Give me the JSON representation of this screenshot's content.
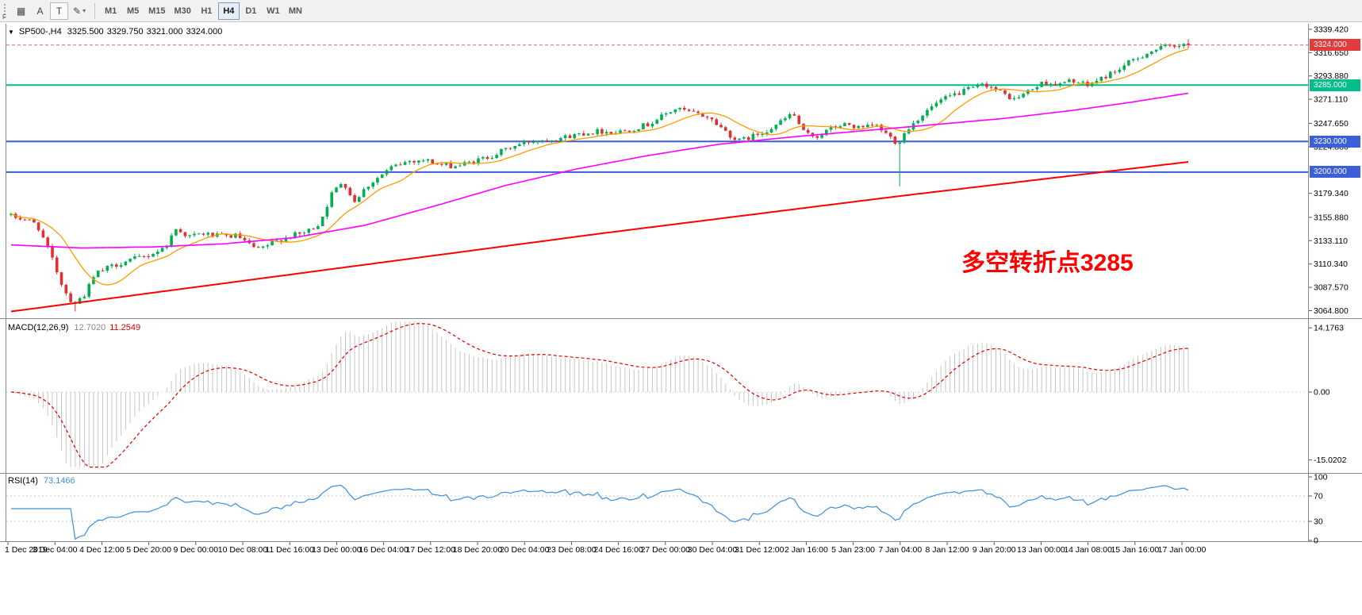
{
  "toolbar": {
    "dock_label": "F",
    "tools": [
      {
        "name": "grid-tool",
        "glyph": "▦"
      },
      {
        "name": "text-tool",
        "glyph": "A"
      },
      {
        "name": "type-tool",
        "glyph": "T"
      },
      {
        "name": "draw-tools",
        "glyph": "✎",
        "caret": "▾"
      }
    ],
    "timeframes": [
      "M1",
      "M5",
      "M15",
      "M30",
      "H1",
      "H4",
      "D1",
      "W1",
      "MN"
    ],
    "active_timeframe": "H4"
  },
  "chart_data": {
    "type": "candlestick",
    "title": "SP500-,H4",
    "symbol": "SP500-",
    "period": "H4",
    "selector_glyph": "▼",
    "quote": {
      "open": "3325.500",
      "high": "3329.750",
      "low": "3321.000",
      "close": "3324.000"
    },
    "price_axis_labels": [
      "3339.420",
      "3316.650",
      "3293.880",
      "3271.110",
      "3247.650",
      "3224.880",
      "3179.340",
      "3155.880",
      "3133.110",
      "3110.340",
      "3087.570",
      "3064.800"
    ],
    "current_price": {
      "label": "3324.000",
      "color": "#e23b3b"
    },
    "hlines": [
      {
        "label": "3285.000",
        "color": "#00bd8a"
      },
      {
        "label": "3230.000",
        "color": "#3a5fd9"
      },
      {
        "label": "3200.000",
        "color": "#3a5fd9"
      }
    ],
    "annotation": {
      "text": "多空转折点3285",
      "color": "#ff0000"
    },
    "candles": {
      "count": 258,
      "up_color": "#00b050",
      "down_color": "#e03030",
      "close_path": [
        [
          0.0,
          3157
        ],
        [
          0.012,
          3154
        ],
        [
          0.022,
          3149
        ],
        [
          0.034,
          3118
        ],
        [
          0.045,
          3085
        ],
        [
          0.053,
          3071
        ],
        [
          0.062,
          3080
        ],
        [
          0.072,
          3101
        ],
        [
          0.085,
          3108
        ],
        [
          0.1,
          3114
        ],
        [
          0.115,
          3118
        ],
        [
          0.13,
          3126
        ],
        [
          0.141,
          3146
        ],
        [
          0.15,
          3137
        ],
        [
          0.163,
          3140
        ],
        [
          0.178,
          3137
        ],
        [
          0.192,
          3138
        ],
        [
          0.202,
          3129
        ],
        [
          0.21,
          3124
        ],
        [
          0.222,
          3131
        ],
        [
          0.235,
          3137
        ],
        [
          0.25,
          3141
        ],
        [
          0.262,
          3150
        ],
        [
          0.272,
          3178
        ],
        [
          0.282,
          3192
        ],
        [
          0.291,
          3171
        ],
        [
          0.302,
          3186
        ],
        [
          0.312,
          3195
        ],
        [
          0.324,
          3205
        ],
        [
          0.338,
          3211
        ],
        [
          0.352,
          3212
        ],
        [
          0.364,
          3207
        ],
        [
          0.378,
          3206
        ],
        [
          0.392,
          3210
        ],
        [
          0.408,
          3216
        ],
        [
          0.424,
          3224
        ],
        [
          0.44,
          3230
        ],
        [
          0.455,
          3232
        ],
        [
          0.47,
          3234
        ],
        [
          0.485,
          3238
        ],
        [
          0.5,
          3240
        ],
        [
          0.513,
          3239
        ],
        [
          0.527,
          3242
        ],
        [
          0.542,
          3247
        ],
        [
          0.555,
          3256
        ],
        [
          0.565,
          3262
        ],
        [
          0.578,
          3258
        ],
        [
          0.592,
          3254
        ],
        [
          0.606,
          3241
        ],
        [
          0.617,
          3230
        ],
        [
          0.628,
          3234
        ],
        [
          0.642,
          3241
        ],
        [
          0.654,
          3249
        ],
        [
          0.664,
          3258
        ],
        [
          0.674,
          3237
        ],
        [
          0.685,
          3235
        ],
        [
          0.697,
          3243
        ],
        [
          0.71,
          3247
        ],
        [
          0.722,
          3242
        ],
        [
          0.734,
          3246
        ],
        [
          0.744,
          3237
        ],
        [
          0.753,
          3228
        ],
        [
          0.762,
          3243
        ],
        [
          0.774,
          3256
        ],
        [
          0.787,
          3268
        ],
        [
          0.802,
          3276
        ],
        [
          0.817,
          3282
        ],
        [
          0.828,
          3286
        ],
        [
          0.84,
          3278
        ],
        [
          0.852,
          3271
        ],
        [
          0.866,
          3280
        ],
        [
          0.878,
          3288
        ],
        [
          0.89,
          3285
        ],
        [
          0.902,
          3290
        ],
        [
          0.914,
          3284
        ],
        [
          0.927,
          3292
        ],
        [
          0.94,
          3300
        ],
        [
          0.953,
          3309
        ],
        [
          0.966,
          3317
        ],
        [
          0.982,
          3323
        ],
        [
          1.0,
          3326
        ]
      ],
      "low_spikes": [
        {
          "frac": 0.053,
          "low": 3064
        },
        {
          "frac": 0.753,
          "low": 3186
        }
      ]
    },
    "moving_averages": {
      "fast": {
        "period": 12,
        "color": "#ff9c00"
      },
      "medium": {
        "color": "#ff00ff",
        "path": [
          [
            0,
            3129
          ],
          [
            0.06,
            3126
          ],
          [
            0.12,
            3127
          ],
          [
            0.18,
            3130
          ],
          [
            0.24,
            3136
          ],
          [
            0.3,
            3148
          ],
          [
            0.36,
            3167
          ],
          [
            0.42,
            3187
          ],
          [
            0.48,
            3203
          ],
          [
            0.54,
            3216
          ],
          [
            0.6,
            3227
          ],
          [
            0.66,
            3234
          ],
          [
            0.72,
            3240
          ],
          [
            0.78,
            3246
          ],
          [
            0.84,
            3252
          ],
          [
            0.9,
            3260
          ],
          [
            0.95,
            3268
          ],
          [
            1,
            3277
          ]
        ]
      },
      "slow": {
        "color": "#ff0000",
        "path": [
          [
            0,
            3064
          ],
          [
            0.25,
            3102
          ],
          [
            0.5,
            3140
          ],
          [
            0.75,
            3176
          ],
          [
            1,
            3210
          ]
        ]
      }
    },
    "macd": {
      "name": "MACD(12,26,9)",
      "main_value": "12.7020",
      "signal_value": "11.2549",
      "fast": 12,
      "slow": 26,
      "signal": 9,
      "axis_labels": [
        "14.1763",
        "0.00",
        "-15.0202"
      ],
      "hist_color": "#c4c4c4",
      "signal_color": "#e00000"
    },
    "rsi": {
      "name": "RSI(14)",
      "value": "73.1466",
      "period": 14,
      "axis_labels": [
        "100",
        "70",
        "30",
        "0"
      ],
      "levels": [
        70,
        30
      ],
      "color": "#3e8ede"
    },
    "time_axis": [
      "1 Dec 2019",
      "3 Dec 04:00",
      "4 Dec 12:00",
      "5 Dec 20:00",
      "9 Dec 00:00",
      "10 Dec 08:00",
      "11 Dec 16:00",
      "13 Dec 00:00",
      "16 Dec 04:00",
      "17 Dec 12:00",
      "18 Dec 20:00",
      "20 Dec 04:00",
      "23 Dec 08:00",
      "24 Dec 16:00",
      "27 Dec 00:00",
      "30 Dec 04:00",
      "31 Dec 12:00",
      "2 Jan 16:00",
      "5 Jan 23:00",
      "7 Jan 04:00",
      "8 Jan 12:00",
      "9 Jan 20:00",
      "13 Jan 00:00",
      "14 Jan 08:00",
      "15 Jan 16:00",
      "17 Jan 00:00"
    ]
  }
}
